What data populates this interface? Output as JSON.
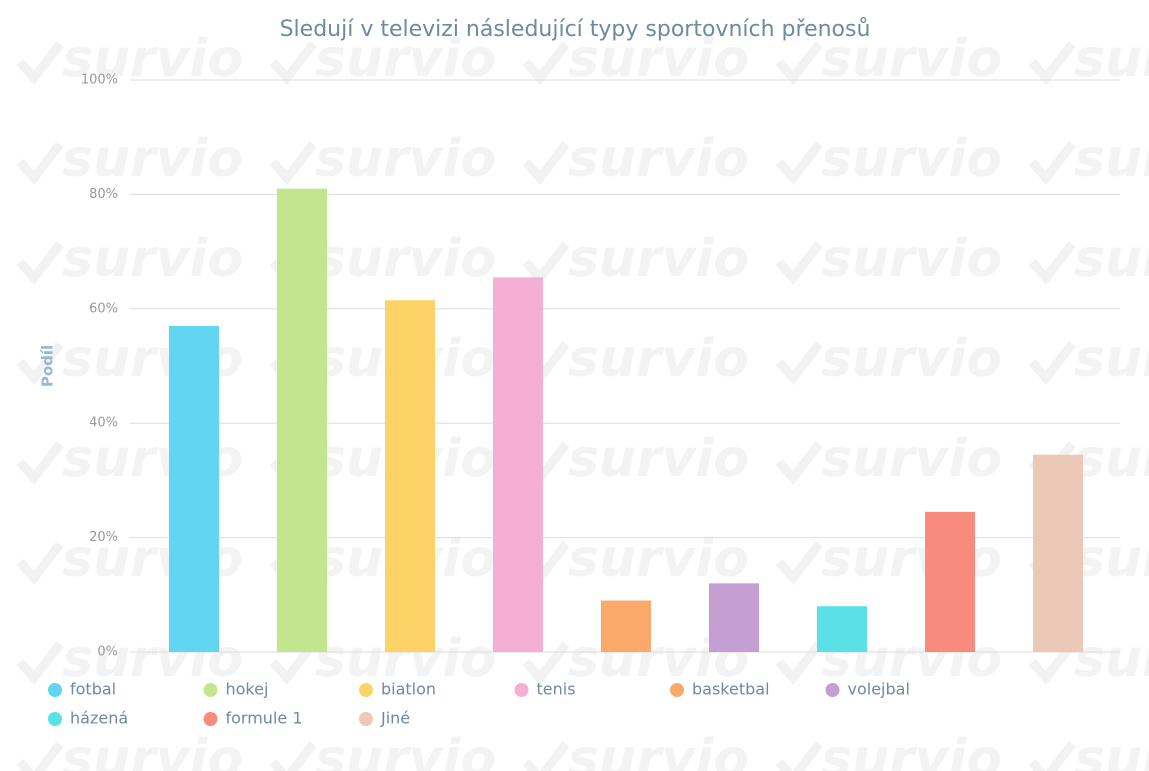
{
  "chart_data": {
    "type": "bar",
    "title": "Sledují v televizi následující typy sportovních přenosů",
    "y_label": "Podíl",
    "watermark": "survio",
    "categories": [
      "fotbal",
      "hokej",
      "biatlon",
      "tenis",
      "basketbal",
      "volejbal",
      "házená",
      "formule 1",
      "Jiné"
    ],
    "values": [
      57,
      81,
      61.5,
      65.5,
      9,
      12,
      8,
      24.5,
      34.5
    ],
    "colors": [
      "#62d5f2",
      "#c3e58e",
      "#fdd368",
      "#f4afd5",
      "#fba96a",
      "#c59ed3",
      "#5ce0e8",
      "#f98b7e",
      "#ecc9b7"
    ],
    "ylim": [
      0,
      100
    ],
    "yticks": [
      {
        "value": 0,
        "label": "0%"
      },
      {
        "value": 20,
        "label": "20%"
      },
      {
        "value": 40,
        "label": "40%"
      },
      {
        "value": 60,
        "label": "60%"
      },
      {
        "value": 80,
        "label": "80%"
      },
      {
        "value": 100,
        "label": "100%"
      }
    ],
    "grid": true,
    "legend": "bottom"
  }
}
